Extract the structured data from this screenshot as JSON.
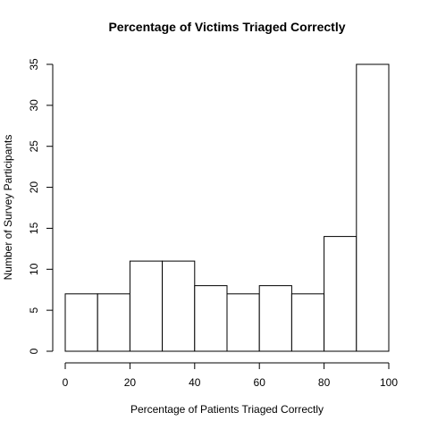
{
  "chart_data": {
    "type": "bar",
    "title": "Percentage of Victims Triaged Correctly",
    "xlabel": "Percentage of Patients Triaged Correctly",
    "ylabel": "Number of Survey Participants",
    "bins": [
      {
        "from": 0,
        "to": 10,
        "value": 7
      },
      {
        "from": 10,
        "to": 20,
        "value": 7
      },
      {
        "from": 20,
        "to": 30,
        "value": 11
      },
      {
        "from": 30,
        "to": 40,
        "value": 11
      },
      {
        "from": 40,
        "to": 50,
        "value": 8
      },
      {
        "from": 50,
        "to": 60,
        "value": 7
      },
      {
        "from": 60,
        "to": 70,
        "value": 8
      },
      {
        "from": 70,
        "to": 80,
        "value": 7
      },
      {
        "from": 80,
        "to": 90,
        "value": 14
      },
      {
        "from": 90,
        "to": 100,
        "value": 35
      }
    ],
    "x_ticks": [
      0,
      20,
      40,
      60,
      80,
      100
    ],
    "y_ticks": [
      0,
      5,
      10,
      15,
      20,
      25,
      30,
      35
    ],
    "xlim": [
      0,
      100
    ],
    "ylim": [
      0,
      35
    ],
    "grid": false,
    "bar_fill": "#ffffff",
    "bar_stroke": "#000000"
  }
}
